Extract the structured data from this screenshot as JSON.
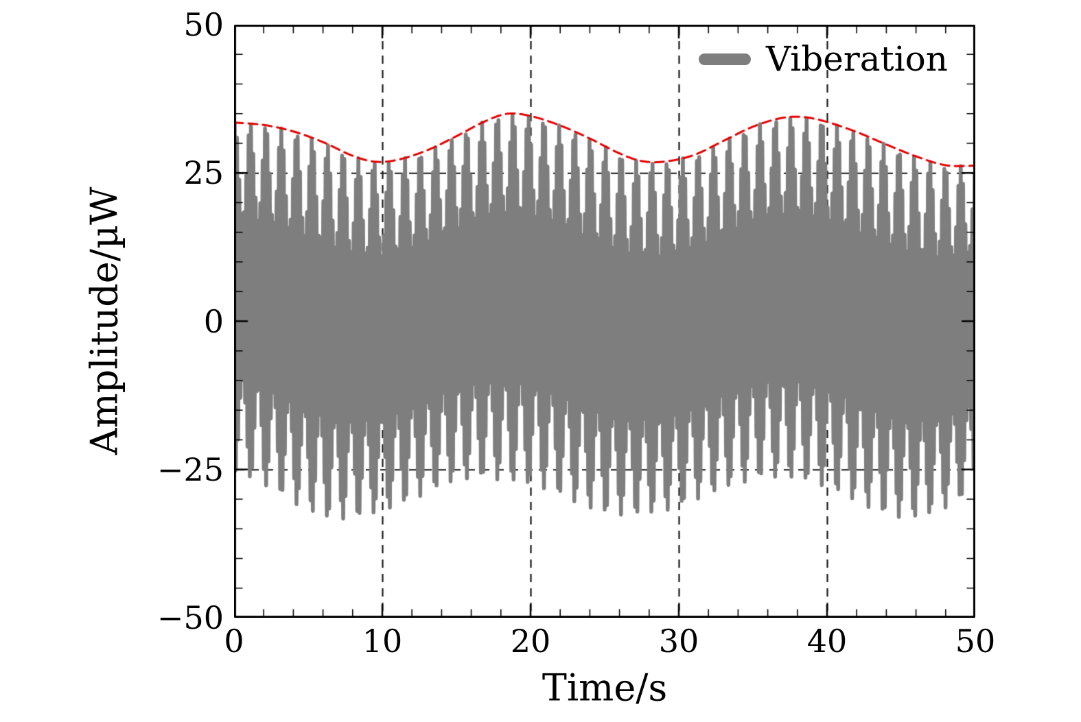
{
  "page": {
    "background": "#ffffff"
  },
  "chart_data": {
    "type": "line",
    "title": "",
    "xlabel": "Time/s",
    "ylabel": "Amplitude/µW",
    "xlim": [
      0,
      50
    ],
    "ylim": [
      -50,
      50
    ],
    "xticks": [
      0,
      10,
      20,
      30,
      40,
      50
    ],
    "yticks": [
      -50,
      -25,
      0,
      25,
      50
    ],
    "x_minor_step": 2,
    "y_minor_step": 5,
    "grid": {
      "x_dashed_lines": [
        10,
        20,
        30,
        40
      ],
      "y_dashed_lines": [
        -25,
        25
      ],
      "dash_color": "#141414",
      "dash_pattern": [
        12,
        9
      ]
    },
    "legend": {
      "position": "upper-right",
      "entries": [
        {
          "label": "Viberation",
          "color": "#7e7e7e"
        }
      ]
    },
    "series": [
      {
        "name": "Viberation",
        "kind": "am_waveform",
        "color": "#7e7e7e",
        "line_width": 5.5,
        "carrier_freq_hz": 6.35,
        "burst_freq_hz": 0.96,
        "burst_phase_rad": 1.2,
        "mod_base": 0.73,
        "mod_depth": 0.27,
        "offset_mean": 0.6,
        "offset_amp": 3.4,
        "offset_period_s": 19,
        "offset_peak_s": 18.35,
        "samples_per_s": 250
      },
      {
        "name": "Peak envelope",
        "kind": "dashed_line",
        "color": "#e60000",
        "line_width": 3,
        "dash": [
          13,
          8
        ],
        "x": [
          0,
          2,
          4,
          6,
          8,
          9.5,
          11,
          13,
          15,
          17,
          18.5,
          20,
          22,
          24,
          26,
          27.5,
          29,
          31,
          33,
          35,
          37,
          38.5,
          40,
          42,
          44,
          46,
          48,
          50
        ],
        "y": [
          33.5,
          33.1,
          32.0,
          30.2,
          27.9,
          26.9,
          27.2,
          28.8,
          31.2,
          33.8,
          35.0,
          34.6,
          33.0,
          30.8,
          28.3,
          27.0,
          26.9,
          28.0,
          30.4,
          32.8,
          34.3,
          34.4,
          33.6,
          31.9,
          29.8,
          27.8,
          26.3,
          26.2
        ]
      }
    ]
  }
}
